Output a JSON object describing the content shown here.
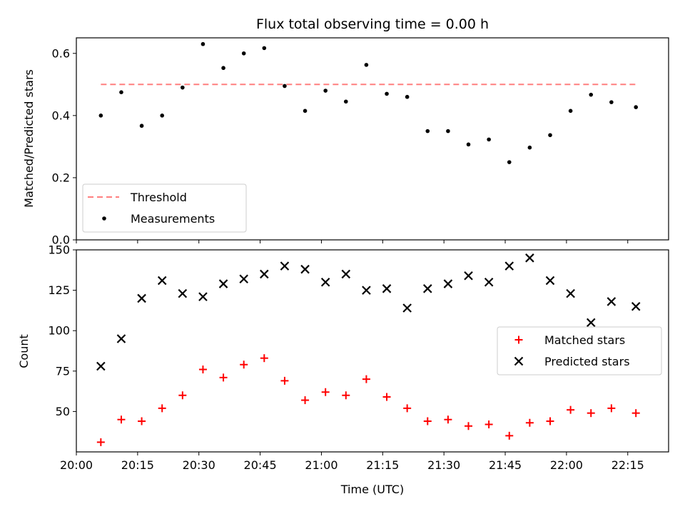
{
  "figure": {
    "title": "Flux total observing time = 0.00 h"
  },
  "colors": {
    "threshold": "#ff7f7f",
    "measurement": "#000000",
    "matched": "#ff0000",
    "predicted": "#000000"
  },
  "chart_data": [
    {
      "type": "scatter",
      "ylabel": "Matched/Predicted stars",
      "xlim": [
        "20:00",
        "22:25"
      ],
      "ylim": [
        0,
        0.65
      ],
      "y_ticks": [
        0.0,
        0.2,
        0.4,
        0.6
      ],
      "y_tick_labels": [
        "0.0",
        "0.2",
        "0.4",
        "0.6"
      ],
      "legend_position": "lower-left",
      "threshold": {
        "name": "Threshold",
        "value": 0.5,
        "x_start": "20:06",
        "x_end": "22:17",
        "style": "dashed"
      },
      "series": [
        {
          "name": "Measurements",
          "x": [
            "20:06",
            "20:11",
            "20:16",
            "20:21",
            "20:26",
            "20:31",
            "20:36",
            "20:41",
            "20:46",
            "20:51",
            "20:56",
            "21:01",
            "21:06",
            "21:11",
            "21:16",
            "21:21",
            "21:26",
            "21:31",
            "21:36",
            "21:41",
            "21:46",
            "21:51",
            "21:56",
            "22:01",
            "22:06",
            "22:11",
            "22:17"
          ],
          "values": [
            0.4,
            0.475,
            0.367,
            0.4,
            0.49,
            0.63,
            0.553,
            0.6,
            0.617,
            0.495,
            0.415,
            0.48,
            0.445,
            0.563,
            0.47,
            0.46,
            0.35,
            0.35,
            0.307,
            0.323,
            0.25,
            0.297,
            0.337,
            0.415,
            0.467,
            0.443,
            0.427
          ]
        }
      ]
    },
    {
      "type": "scatter",
      "xlabel": "Time (UTC)",
      "ylabel": "Count",
      "xlim": [
        "20:00",
        "22:25"
      ],
      "ylim": [
        25,
        150
      ],
      "x_tick_labels": [
        "20:00",
        "20:15",
        "20:30",
        "20:45",
        "21:00",
        "21:15",
        "21:30",
        "21:45",
        "22:00",
        "22:15"
      ],
      "y_ticks": [
        50,
        75,
        100,
        125,
        150
      ],
      "y_tick_labels": [
        "50",
        "75",
        "100",
        "125",
        "150"
      ],
      "legend_position": "center-right",
      "series": [
        {
          "name": "Matched stars",
          "marker": "plus",
          "x": [
            "20:06",
            "20:11",
            "20:16",
            "20:21",
            "20:26",
            "20:31",
            "20:36",
            "20:41",
            "20:46",
            "20:51",
            "20:56",
            "21:01",
            "21:06",
            "21:11",
            "21:16",
            "21:21",
            "21:26",
            "21:31",
            "21:36",
            "21:41",
            "21:46",
            "21:51",
            "21:56",
            "22:01",
            "22:06",
            "22:11",
            "22:17"
          ],
          "values": [
            31,
            45,
            44,
            52,
            60,
            76,
            71,
            79,
            83,
            69,
            57,
            62,
            60,
            70,
            59,
            52,
            44,
            45,
            41,
            42,
            35,
            43,
            44,
            51,
            49,
            52,
            49
          ]
        },
        {
          "name": "Predicted stars",
          "marker": "cross",
          "x": [
            "20:06",
            "20:11",
            "20:16",
            "20:21",
            "20:26",
            "20:31",
            "20:36",
            "20:41",
            "20:46",
            "20:51",
            "20:56",
            "21:01",
            "21:06",
            "21:11",
            "21:16",
            "21:21",
            "21:26",
            "21:31",
            "21:36",
            "21:41",
            "21:46",
            "21:51",
            "21:56",
            "22:01",
            "22:06",
            "22:11",
            "22:17"
          ],
          "values": [
            78,
            95,
            120,
            131,
            123,
            121,
            129,
            132,
            135,
            140,
            138,
            130,
            135,
            125,
            126,
            114,
            126,
            129,
            134,
            130,
            140,
            145,
            131,
            123,
            105,
            118,
            115
          ]
        }
      ]
    }
  ]
}
